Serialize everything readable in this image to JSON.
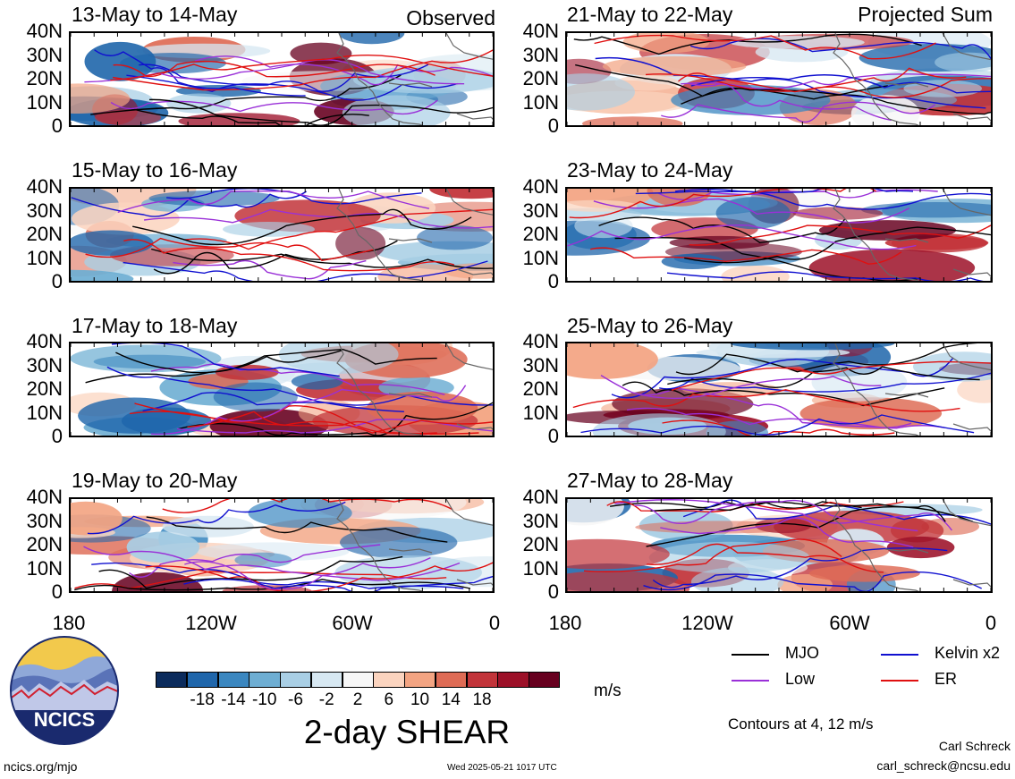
{
  "panels": [
    {
      "title": "13-May to 14-May",
      "tag": "Observed",
      "seed": 1
    },
    {
      "title": "21-May to 22-May",
      "tag": "Projected Sum",
      "seed": 2
    },
    {
      "title": "15-May to 16-May",
      "tag": "",
      "seed": 3
    },
    {
      "title": "23-May to 24-May",
      "tag": "",
      "seed": 4
    },
    {
      "title": "17-May to 18-May",
      "tag": "",
      "seed": 5
    },
    {
      "title": "25-May to 26-May",
      "tag": "",
      "seed": 6
    },
    {
      "title": "19-May to 20-May",
      "tag": "",
      "seed": 7
    },
    {
      "title": "27-May to 28-May",
      "tag": "",
      "seed": 8
    }
  ],
  "lat_labels": [
    "40N",
    "30N",
    "20N",
    "10N",
    "0"
  ],
  "lon_labels": [
    "180",
    "120W",
    "60W",
    "0"
  ],
  "colorbar": {
    "colors": [
      "#0b2b5c",
      "#1f66ab",
      "#3b87c0",
      "#6eaed3",
      "#a9cfe5",
      "#d7e8f2",
      "#f7f7f7",
      "#fbd4bf",
      "#f3a482",
      "#de6b55",
      "#c2343a",
      "#9c1028",
      "#67001f"
    ],
    "labels": [
      "-18",
      "-14",
      "-10",
      "-6",
      "-2",
      "2",
      "6",
      "10",
      "14",
      "18"
    ],
    "units": "m/s",
    "title": "2-day SHEAR"
  },
  "legend": [
    {
      "label": "MJO",
      "color": "#000000"
    },
    {
      "label": "Kelvin x2",
      "color": "#1010d0"
    },
    {
      "label": "Low",
      "color": "#9a30d8"
    },
    {
      "label": "ER",
      "color": "#e01010"
    }
  ],
  "contour_note": "Contours at 4, 12 m/s",
  "author": "Carl Schreck",
  "email": "carl_schreck@ncsu.edu",
  "website": "ncics.org/mjo",
  "timestamp": "Wed 2025-05-21 1017 UTC",
  "logo_text": "NCICS"
}
